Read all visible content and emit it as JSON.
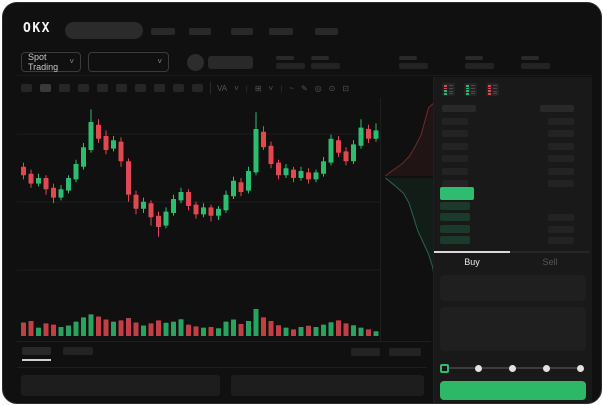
{
  "header": {
    "logo": "OKX",
    "nav_item_count": 5
  },
  "subheader": {
    "market_type_label": "Spot Trading",
    "chevron": "˅",
    "ticker_stat_count": 5
  },
  "chart_toolbar": {
    "timeframe_button_count": 10,
    "active_button_index": 1,
    "icons": [
      {
        "name": "indicators-icon",
        "glyph": "VA"
      },
      {
        "name": "chevron-down-icon",
        "glyph": "˅"
      },
      {
        "name": "chart-type-icon",
        "glyph": "⊞"
      },
      {
        "name": "chevron-down-icon",
        "glyph": "˅"
      },
      {
        "name": "line-tool-icon",
        "glyph": "~"
      },
      {
        "name": "draw-icon",
        "glyph": "✎"
      },
      {
        "name": "snapshot-icon",
        "glyph": "◎"
      },
      {
        "name": "settings-icon",
        "glyph": "⊙"
      },
      {
        "name": "fullscreen-icon",
        "glyph": "⊡"
      }
    ]
  },
  "chart_data": {
    "type": "candlestick",
    "note": "OHLC normalized to 0-100 price scale read from pixel positions; volumes normalized 0-100",
    "grid": "3 horizontal gridlines",
    "candles": [
      [
        58,
        61,
        49,
        52
      ],
      [
        53,
        56,
        43,
        46
      ],
      [
        46,
        53,
        44,
        50
      ],
      [
        50,
        52,
        38,
        42
      ],
      [
        43,
        46,
        32,
        36
      ],
      [
        36,
        45,
        34,
        42
      ],
      [
        41,
        52,
        39,
        50
      ],
      [
        49,
        63,
        47,
        60
      ],
      [
        58,
        75,
        56,
        72
      ],
      [
        70,
        99,
        68,
        90
      ],
      [
        88,
        92,
        75,
        78
      ],
      [
        80,
        84,
        67,
        70
      ],
      [
        71,
        80,
        69,
        77
      ],
      [
        76,
        79,
        58,
        62
      ],
      [
        62,
        64,
        33,
        38
      ],
      [
        38,
        41,
        24,
        28
      ],
      [
        28,
        36,
        25,
        33
      ],
      [
        32,
        34,
        16,
        22
      ],
      [
        23,
        26,
        8,
        15
      ],
      [
        16,
        29,
        14,
        26
      ],
      [
        25,
        38,
        23,
        35
      ],
      [
        34,
        43,
        32,
        40
      ],
      [
        40,
        42,
        27,
        30
      ],
      [
        31,
        33,
        21,
        24
      ],
      [
        24,
        32,
        22,
        29
      ],
      [
        29,
        31,
        19,
        23
      ],
      [
        23,
        30,
        20,
        28
      ],
      [
        27,
        41,
        25,
        38
      ],
      [
        37,
        51,
        35,
        48
      ],
      [
        47,
        50,
        37,
        40
      ],
      [
        41,
        58,
        39,
        55
      ],
      [
        54,
        97,
        52,
        85
      ],
      [
        83,
        87,
        70,
        72
      ],
      [
        73,
        76,
        57,
        60
      ],
      [
        61,
        63,
        49,
        52
      ],
      [
        52,
        60,
        50,
        57
      ],
      [
        56,
        58,
        47,
        50
      ],
      [
        50,
        58,
        48,
        55
      ],
      [
        54,
        57,
        46,
        49
      ],
      [
        49,
        56,
        47,
        54
      ],
      [
        53,
        65,
        51,
        62
      ],
      [
        61,
        81,
        59,
        78
      ],
      [
        77,
        80,
        65,
        68
      ],
      [
        69,
        72,
        59,
        62
      ],
      [
        62,
        77,
        60,
        74
      ],
      [
        73,
        92,
        71,
        86
      ],
      [
        85,
        88,
        75,
        78
      ],
      [
        78,
        89,
        76,
        84
      ],
      [
        83,
        86,
        73,
        77
      ]
    ],
    "volumes": [
      45,
      50,
      28,
      42,
      38,
      30,
      35,
      48,
      62,
      72,
      65,
      55,
      48,
      52,
      60,
      45,
      35,
      42,
      52,
      44,
      48,
      56,
      38,
      32,
      28,
      30,
      26,
      48,
      55,
      40,
      50,
      90,
      62,
      50,
      36,
      28,
      22,
      30,
      34,
      30,
      38,
      46,
      52,
      42,
      36,
      28,
      22,
      16,
      12
    ],
    "depth": {
      "asks": [
        [
          1,
          0.02
        ],
        [
          0.88,
          0.05
        ],
        [
          0.82,
          0.11
        ],
        [
          0.74,
          0.19
        ],
        [
          0.63,
          0.25
        ],
        [
          0.52,
          0.3
        ],
        [
          0.38,
          0.34
        ],
        [
          0.22,
          0.37
        ],
        [
          0.08,
          0.4
        ]
      ],
      "bids": [
        [
          0.08,
          0.41
        ],
        [
          0.26,
          0.45
        ],
        [
          0.42,
          0.49
        ],
        [
          0.52,
          0.54
        ],
        [
          0.6,
          0.61
        ],
        [
          0.68,
          0.68
        ],
        [
          0.78,
          0.74
        ],
        [
          0.88,
          0.8
        ],
        [
          0.96,
          0.87
        ],
        [
          1,
          0.95
        ]
      ]
    }
  },
  "orderbook": {
    "view_icons": [
      {
        "name": "orderbook-both-icon",
        "marks": [
          "red",
          "red",
          "green",
          "green"
        ]
      },
      {
        "name": "orderbook-bids-icon",
        "marks": [
          "green",
          "green",
          "green",
          "green"
        ]
      },
      {
        "name": "orderbook-asks-icon",
        "marks": [
          "red",
          "red",
          "red",
          "red"
        ]
      }
    ],
    "header_bar_count": 2,
    "ask_row_count": 6,
    "bid_row_count": 4,
    "bid_rows_with_amount": [
      false,
      true,
      true,
      true
    ],
    "last_price_row": "green-highlight"
  },
  "trade_panel": {
    "buy_tab_label": "Buy",
    "sell_tab_label": "Sell",
    "active_tab": "Buy",
    "input_box_count": 2,
    "slider_dot_count": 5,
    "slider_active_index": 0
  },
  "bottom_panel": {
    "tab_count": 2,
    "active_tab_index": 0,
    "right_item_count": 2,
    "panel_count": 2
  },
  "colors": {
    "up_green": "#2EBD70",
    "down_red": "#E2484F",
    "buy_button_green": "#2DB868",
    "last_price_green": "#2EBD70",
    "bid_tint": "#1C3A2B",
    "panel_bg": "#191919",
    "app_bg": "#101010"
  }
}
